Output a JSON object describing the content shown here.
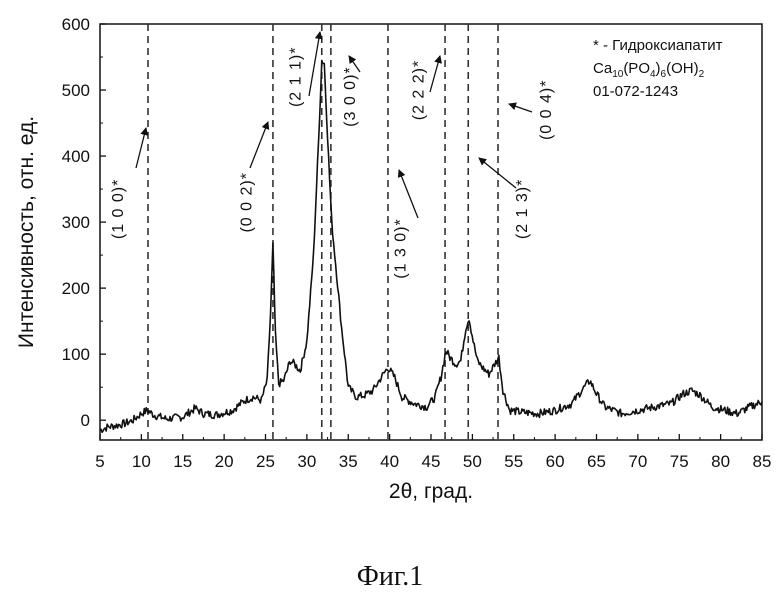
{
  "chart_data": {
    "type": "line",
    "xlabel": "2θ, град.",
    "ylabel": "Интенсивность, отн. ед.",
    "xlim": [
      5,
      85
    ],
    "ylim": [
      -30,
      600
    ],
    "x_ticks": [
      5,
      10,
      15,
      20,
      25,
      30,
      35,
      40,
      45,
      50,
      55,
      60,
      65,
      70,
      75,
      80,
      85
    ],
    "y_ticks": [
      0,
      100,
      200,
      300,
      400,
      500,
      600
    ],
    "grid": false,
    "series": [
      {
        "x": [
          5,
          6,
          7,
          8,
          9,
          10,
          10.7,
          11.5,
          13,
          15,
          16.5,
          17.5,
          19,
          21,
          22.5,
          23.5,
          24.5,
          25.2,
          25.6,
          25.9,
          26.2,
          26.6,
          27.2,
          28,
          28.5,
          29.2,
          30,
          30.8,
          31.4,
          31.8,
          32.1,
          32.5,
          33,
          33.6,
          34.2,
          35,
          36,
          37,
          38,
          39,
          39.8,
          40.6,
          41.5,
          43,
          44.5,
          45.5,
          46.2,
          46.8,
          47.3,
          48,
          48.6,
          49.2,
          49.6,
          50.1,
          50.6,
          51.2,
          52,
          52.7,
          53.2,
          53.7,
          54.5,
          56,
          58,
          60,
          62,
          63.2,
          64.2,
          65,
          66,
          68,
          70,
          72,
          74,
          75.5,
          76.5,
          77.5,
          79,
          80.5,
          82,
          83.5,
          85
        ],
        "y": [
          -15,
          -10,
          -8,
          -5,
          0,
          10,
          15,
          8,
          2,
          5,
          18,
          10,
          8,
          15,
          30,
          35,
          30,
          60,
          160,
          265,
          130,
          55,
          60,
          90,
          85,
          75,
          120,
          250,
          420,
          545,
          540,
          430,
          300,
          220,
          140,
          50,
          35,
          38,
          45,
          65,
          80,
          65,
          35,
          25,
          20,
          35,
          65,
          105,
          95,
          85,
          90,
          140,
          155,
          120,
          90,
          80,
          70,
          85,
          95,
          45,
          15,
          12,
          10,
          15,
          25,
          45,
          60,
          40,
          20,
          10,
          15,
          20,
          25,
          40,
          45,
          38,
          20,
          15,
          10,
          20,
          28
        ]
      }
    ],
    "reference_lines_x": [
      10.8,
      25.9,
      31.8,
      32.9,
      39.8,
      46.7,
      49.5,
      53.1
    ],
    "annotations": [
      {
        "text": "(1 0 0)*",
        "x": 7.8,
        "y": 320
      },
      {
        "text": "(0 0 2)*",
        "x": 23.3,
        "y": 330
      },
      {
        "text": "(2 1 1)*",
        "x": 29.2,
        "y": 520
      },
      {
        "text": "(3 0 0)*",
        "x": 35.8,
        "y": 490
      },
      {
        "text": "(1 3 0)*",
        "x": 41.9,
        "y": 260
      },
      {
        "text": "(2 2 2)*",
        "x": 44.1,
        "y": 500
      },
      {
        "text": "(2 1 3)*",
        "x": 56.6,
        "y": 320
      },
      {
        "text": "(0 0 4)*",
        "x": 59.5,
        "y": 470
      }
    ],
    "legend_lines": [
      "* - Гидроксиапатит",
      "Ca10(PO4)6(OH)2",
      "01-072-1243"
    ],
    "legend_placement": "top-right"
  },
  "legend": {
    "line1": "* - Гидроксиапатит",
    "formula_ca": "Ca",
    "formula_10": "10",
    "formula_po": "(PO",
    "formula_4": "4",
    "formula_close": ")",
    "formula_6": "6",
    "formula_oh": "(OH)",
    "formula_2": "2",
    "line3": "01-072-1243"
  },
  "caption": "Фиг.1"
}
